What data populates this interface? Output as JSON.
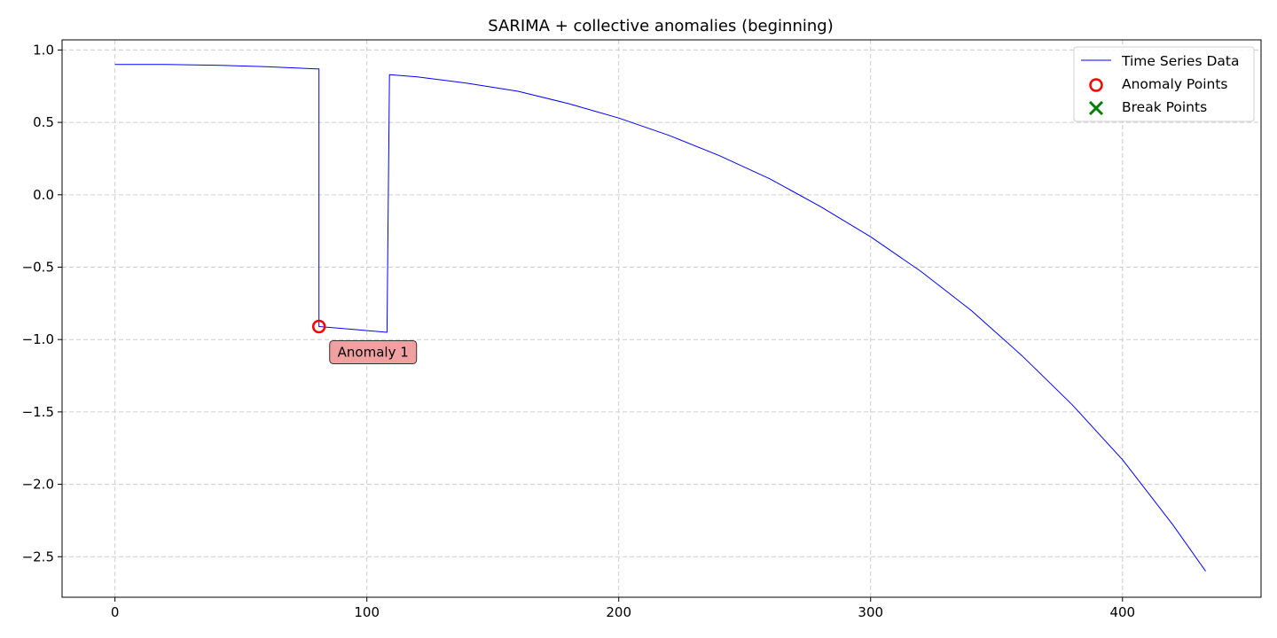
{
  "chart_data": {
    "type": "line",
    "title": "SARIMA + collective anomalies (beginning)",
    "xlabel": "",
    "ylabel": "",
    "xlim": [
      -21,
      455
    ],
    "ylim": [
      -2.78,
      1.07
    ],
    "x_ticks": [
      0,
      100,
      200,
      300,
      400
    ],
    "y_ticks": [
      1.0,
      0.5,
      0.0,
      -0.5,
      -1.0,
      -1.5,
      -2.0,
      -2.5
    ],
    "x_tick_labels": [
      "0",
      "100",
      "200",
      "300",
      "400"
    ],
    "y_tick_labels": [
      "1.0",
      "0.5",
      "0.0",
      "−0.5",
      "−1.0",
      "−1.5",
      "−2.0",
      "−2.5"
    ],
    "grid": true,
    "legend_position": "top-right",
    "legend": [
      {
        "label": "Time Series Data",
        "marker": "line",
        "color": "#0000ff"
      },
      {
        "label": "Anomaly Points",
        "marker": "circle",
        "color": "#ff0000"
      },
      {
        "label": "Break Points",
        "marker": "x",
        "color": "#008000"
      }
    ],
    "series": [
      {
        "name": "Time Series Data",
        "color": "#0000ff",
        "x": [
          0,
          20,
          40,
          60,
          80,
          81,
          81,
          108,
          109,
          120,
          140,
          160,
          180,
          200,
          220,
          240,
          260,
          280,
          300,
          320,
          340,
          360,
          380,
          400,
          420,
          433
        ],
        "y": [
          0.9,
          0.9,
          0.895,
          0.885,
          0.87,
          0.87,
          -0.91,
          -0.95,
          0.83,
          0.815,
          0.77,
          0.715,
          0.63,
          0.53,
          0.41,
          0.27,
          0.11,
          -0.08,
          -0.29,
          -0.53,
          -0.8,
          -1.11,
          -1.45,
          -1.83,
          -2.28,
          -2.6
        ]
      }
    ],
    "anomaly_points": [
      {
        "x": 81,
        "y": -0.91,
        "label": "Anomaly 1"
      }
    ],
    "break_points": [],
    "colors": {
      "line": "#0000ff",
      "anomaly": "#ff0000",
      "break": "#008000",
      "annotation_fill": "#f0a0a0",
      "grid": "#cccccc"
    }
  }
}
